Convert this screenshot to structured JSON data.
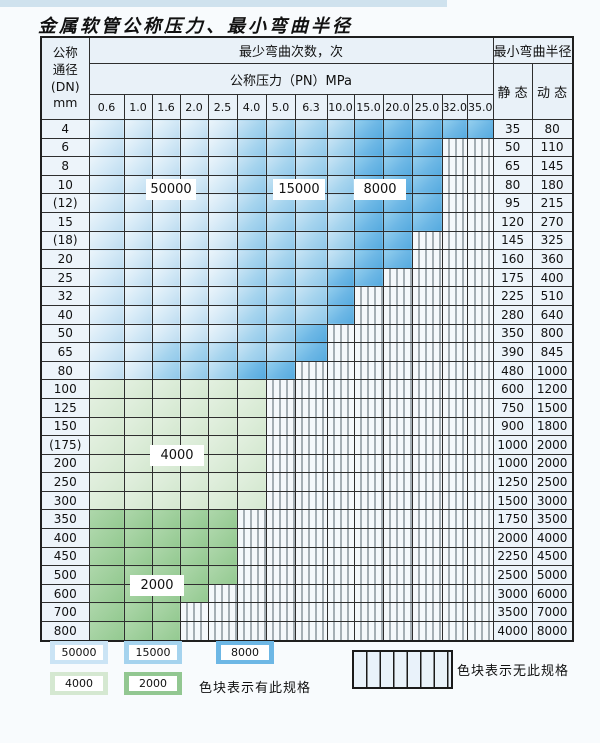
{
  "title": "金属软管公称压力、最小弯曲半径",
  "header": {
    "dn_label_lines": [
      "公称",
      "通径",
      "(DN)",
      "mm"
    ],
    "bend_cycles_label": "最少弯曲次数，次",
    "pressure_label": "公称压力（PN）MPa",
    "pressure_columns": [
      "0.6",
      "1.0",
      "1.6",
      "2.0",
      "2.5",
      "4.0",
      "5.0",
      "6.3",
      "10.0",
      "15.0",
      "20.0",
      "25.0",
      "32.0",
      "35.0"
    ],
    "radius_label": "最小弯曲半径",
    "static_label": "静 态",
    "dynamic_label": "动 态"
  },
  "cell_legend_key": {
    "1": "50000",
    "2": "15000",
    "3": "8000",
    "4": "4000",
    "5": "2000",
    "0": "no-spec"
  },
  "rows": [
    {
      "dn": "4",
      "cells": "11111222233333",
      "static": "35",
      "dynamic": "80"
    },
    {
      "dn": "6",
      "cells": "11111222233300",
      "static": "50",
      "dynamic": "110"
    },
    {
      "dn": "8",
      "cells": "11111222233300",
      "static": "65",
      "dynamic": "145"
    },
    {
      "dn": "10",
      "cells": "11111222233300",
      "static": "80",
      "dynamic": "180"
    },
    {
      "dn": "(12)",
      "cells": "11111222233300",
      "static": "95",
      "dynamic": "215"
    },
    {
      "dn": "15",
      "cells": "11111222233300",
      "static": "120",
      "dynamic": "270"
    },
    {
      "dn": "(18)",
      "cells": "11111222233000",
      "static": "145",
      "dynamic": "325"
    },
    {
      "dn": "20",
      "cells": "11111222233000",
      "static": "160",
      "dynamic": "360"
    },
    {
      "dn": "25",
      "cells": "11111222330000",
      "static": "175",
      "dynamic": "400"
    },
    {
      "dn": "32",
      "cells": "11111222300000",
      "static": "225",
      "dynamic": "510"
    },
    {
      "dn": "40",
      "cells": "11111222300000",
      "static": "280",
      "dynamic": "640"
    },
    {
      "dn": "50",
      "cells": "11111223000000",
      "static": "350",
      "dynamic": "800"
    },
    {
      "dn": "65",
      "cells": "11222223000000",
      "static": "390",
      "dynamic": "845"
    },
    {
      "dn": "80",
      "cells": "11222330000000",
      "static": "480",
      "dynamic": "1000"
    },
    {
      "dn": "100",
      "cells": "44444400000000",
      "static": "600",
      "dynamic": "1200"
    },
    {
      "dn": "125",
      "cells": "44444400000000",
      "static": "750",
      "dynamic": "1500"
    },
    {
      "dn": "150",
      "cells": "44444400000000",
      "static": "900",
      "dynamic": "1800"
    },
    {
      "dn": "(175)",
      "cells": "44444400000000",
      "static": "1000",
      "dynamic": "2000"
    },
    {
      "dn": "200",
      "cells": "44444400000000",
      "static": "1000",
      "dynamic": "2000"
    },
    {
      "dn": "250",
      "cells": "44444400000000",
      "static": "1250",
      "dynamic": "2500"
    },
    {
      "dn": "300",
      "cells": "44444400000000",
      "static": "1500",
      "dynamic": "3000"
    },
    {
      "dn": "350",
      "cells": "55555000000000",
      "static": "1750",
      "dynamic": "3500"
    },
    {
      "dn": "400",
      "cells": "55555000000000",
      "static": "2000",
      "dynamic": "4000"
    },
    {
      "dn": "450",
      "cells": "55555000000000",
      "static": "2250",
      "dynamic": "4500"
    },
    {
      "dn": "500",
      "cells": "55555000000000",
      "static": "2500",
      "dynamic": "5000"
    },
    {
      "dn": "600",
      "cells": "55550000000000",
      "static": "3000",
      "dynamic": "6000"
    },
    {
      "dn": "700",
      "cells": "55500000000000",
      "static": "3500",
      "dynamic": "7000"
    },
    {
      "dn": "800",
      "cells": "55500000000000",
      "static": "4000",
      "dynamic": "8000"
    }
  ],
  "region_labels": [
    {
      "text": "50000"
    },
    {
      "text": "15000"
    },
    {
      "text": "8000"
    },
    {
      "text": "4000"
    },
    {
      "text": "2000"
    }
  ],
  "legend": {
    "swatches": [
      {
        "value": "50000",
        "color": "#cbe4f5"
      },
      {
        "value": "15000",
        "color": "#a5d3ee"
      },
      {
        "value": "8000",
        "color": "#6db7e5"
      },
      {
        "value": "4000",
        "color": "#d5e8d1"
      },
      {
        "value": "2000",
        "color": "#92c791"
      }
    ],
    "has_spec_note": "色块表示有此规格",
    "no_spec_note": "色块表示无此规格"
  },
  "colors": {
    "band_50000": "#cbe4f5",
    "band_15000": "#a5d3ee",
    "band_8000": "#6db7e5",
    "band_4000": "#d5e8d1",
    "band_2000": "#92c791",
    "grid_line": "#2e2e2e",
    "header_bg": "#e9f1f8"
  }
}
